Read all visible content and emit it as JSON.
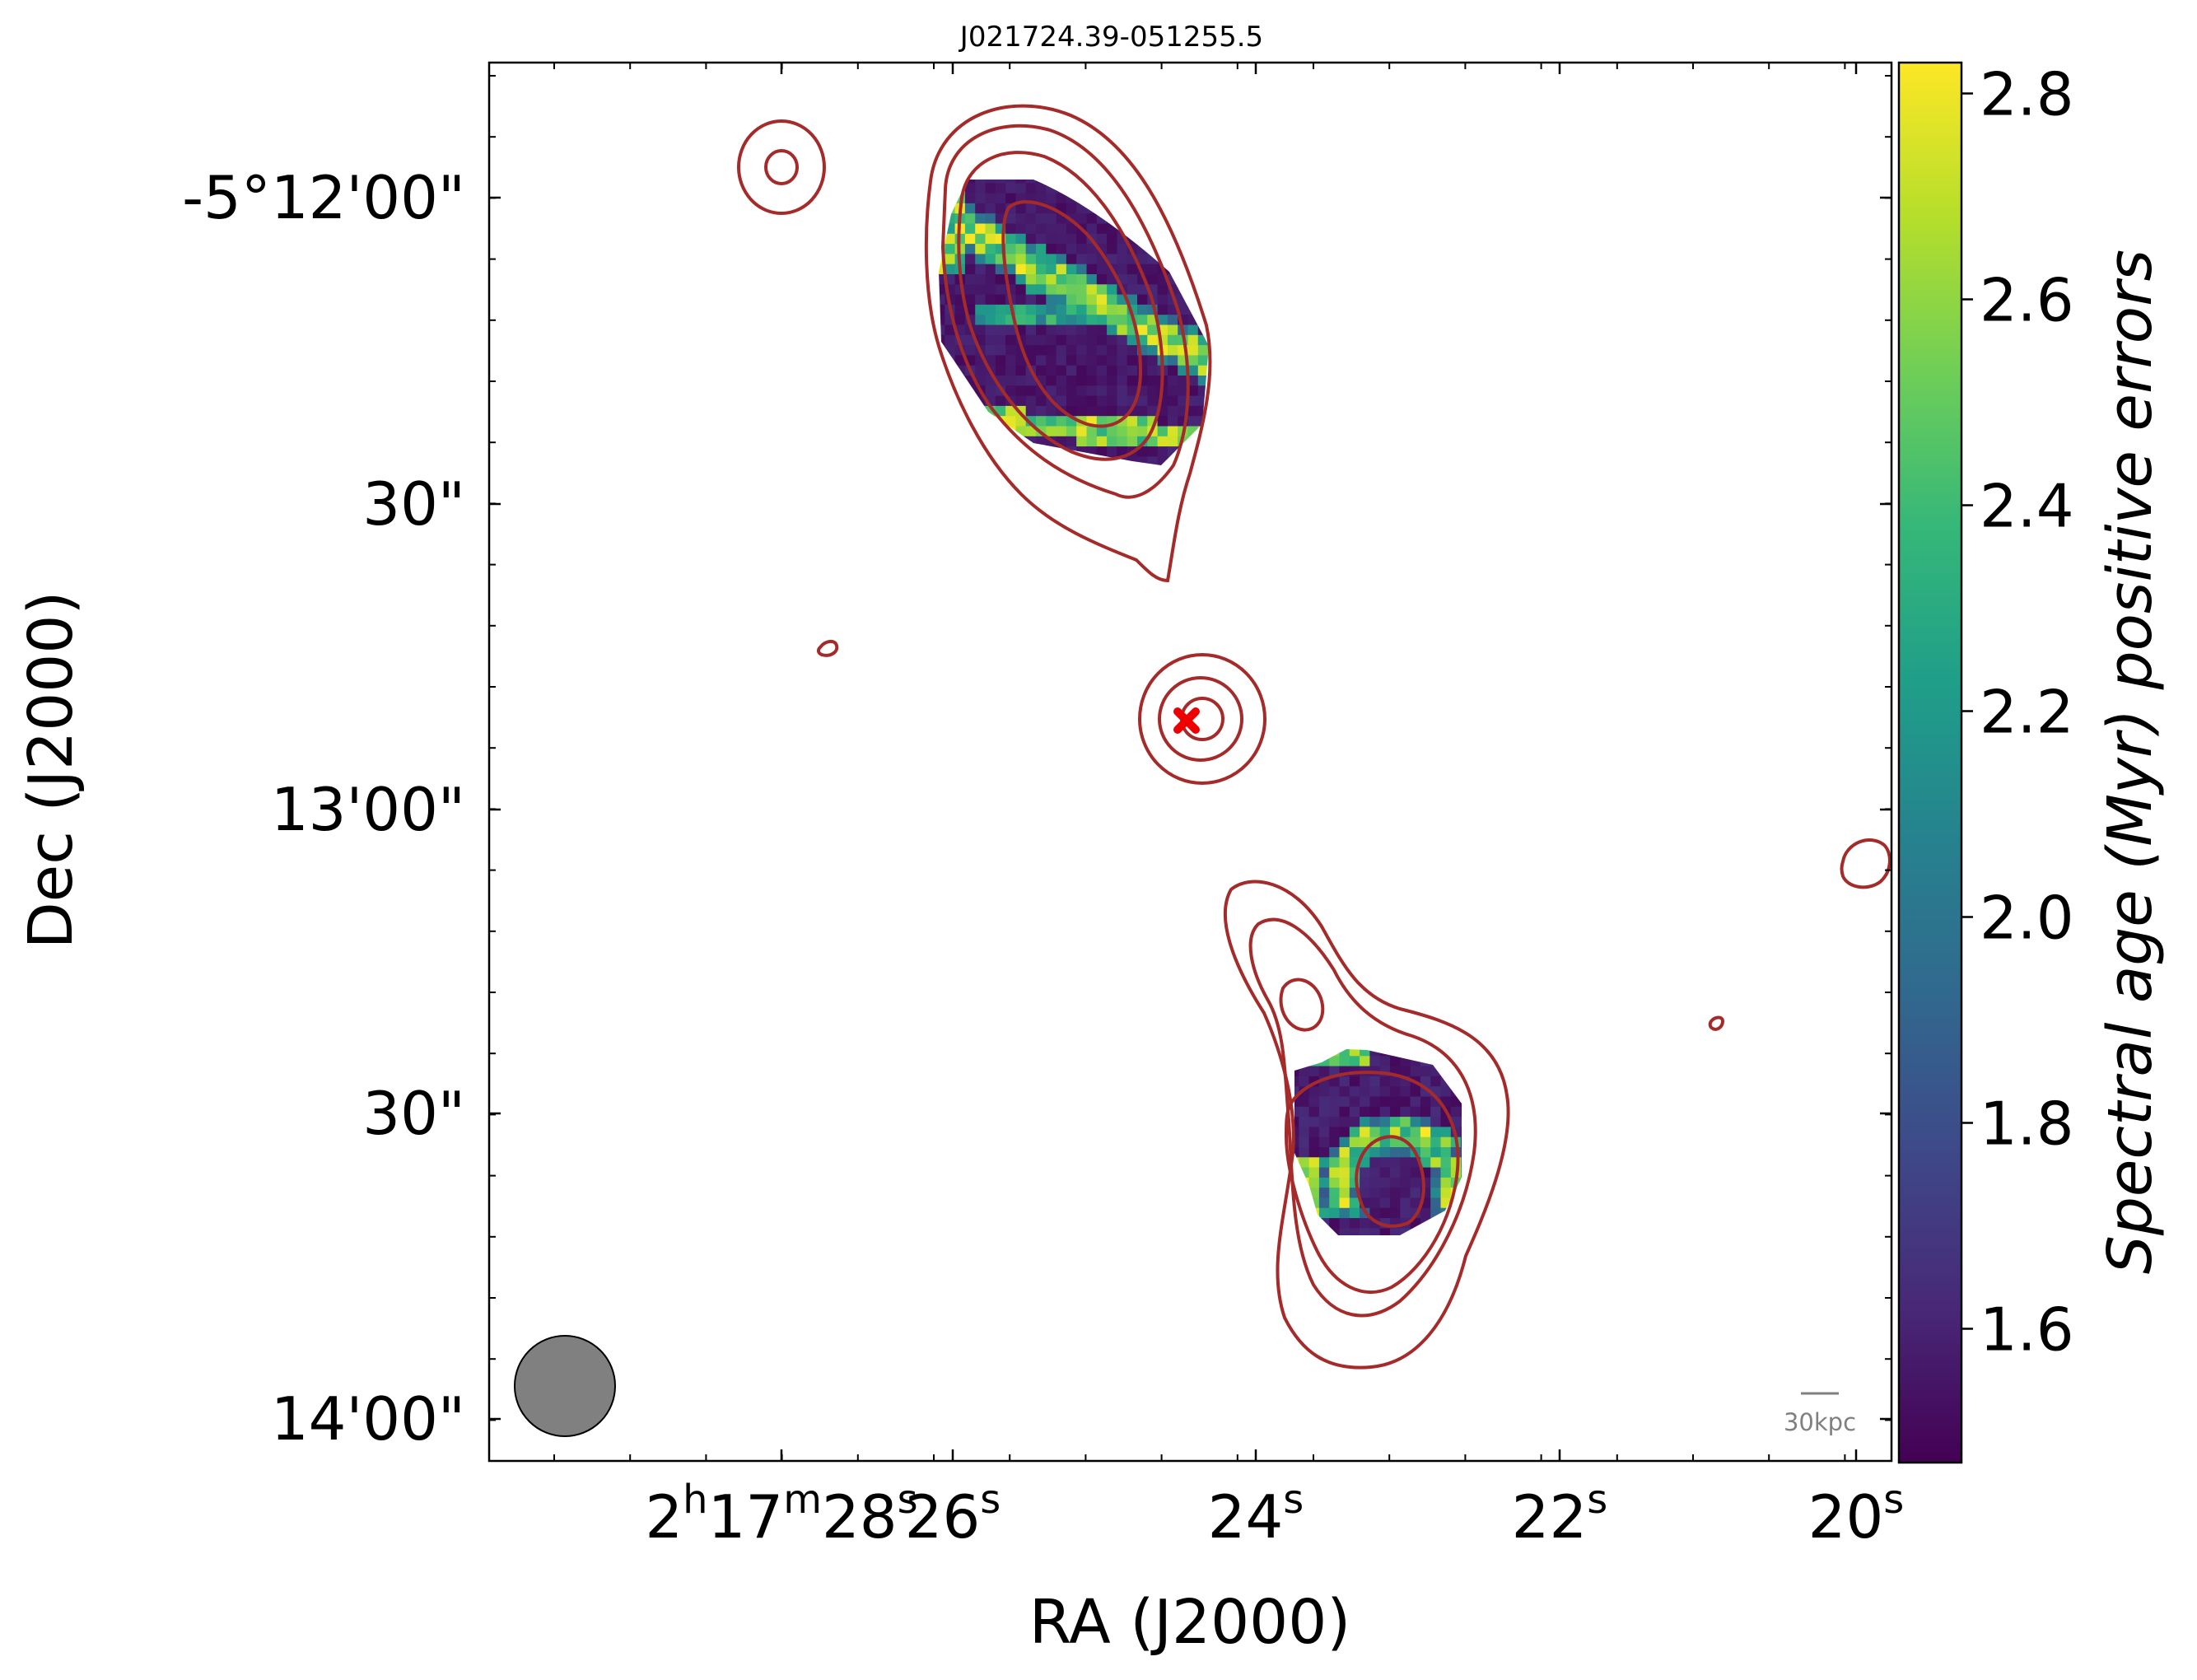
{
  "chart_data": {
    "type": "heatmap",
    "title": "J021724.39-051255.5",
    "xlabel": "RA (J2000)",
    "ylabel": "Dec (J2000)",
    "x_ticks": [
      {
        "h": "2",
        "m": "17",
        "s": "28",
        "sec": 28
      },
      {
        "s": "26",
        "sec": 26
      },
      {
        "s": "24",
        "sec": 24
      },
      {
        "s": "22",
        "sec": 22
      },
      {
        "s": "20",
        "sec": 20
      }
    ],
    "x_range_sec": [
      28.5,
      19.8
    ],
    "y_ticks": [
      {
        "label": "-5°12'00\"",
        "arcsec": 0
      },
      {
        "label": "30\"",
        "arcsec": 30
      },
      {
        "label": "13'00\"",
        "arcsec": 60
      },
      {
        "label": "30\"",
        "arcsec": 90
      },
      {
        "label": "14'00\"",
        "arcsec": 120
      }
    ],
    "y_range_arcsec": [
      -13.5,
      124.5
    ],
    "colorbar": {
      "label": "Spectral age (Myr) positive errors",
      "ticks": [
        "1.6",
        "1.8",
        "2.0",
        "2.2",
        "2.4",
        "2.6",
        "2.8"
      ],
      "range": [
        1.47,
        2.83
      ],
      "colormap": "viridis",
      "colors": [
        "#440154",
        "#482878",
        "#3e4989",
        "#31688e",
        "#26828e",
        "#1f9e89",
        "#35b779",
        "#6ece58",
        "#b5de2b",
        "#fde725"
      ]
    },
    "contour_color": "#a52a2a",
    "host_marker": {
      "symbol": "x",
      "color": "#ee0000",
      "ra_sec": 24.39,
      "dec_arcsec": 55.5
    },
    "scale_bar_label": "30kpc",
    "regions": [
      {
        "name": "north-lobe",
        "ra_sec": 25.1,
        "dec_arcsec": 17,
        "min": 1.5,
        "max": 2.83
      },
      {
        "name": "south-lobe",
        "ra_sec": 23.1,
        "dec_arcsec": 96,
        "min": 1.5,
        "max": 2.83
      }
    ]
  }
}
